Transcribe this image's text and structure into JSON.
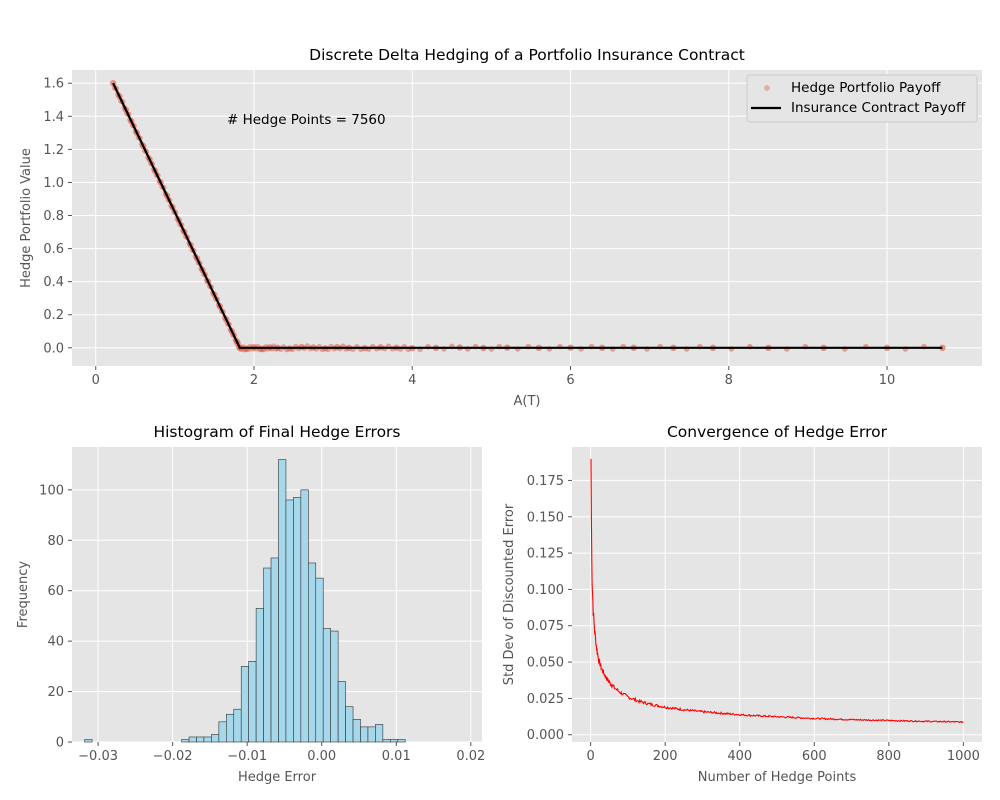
{
  "chart_data": [
    {
      "type": "scatter",
      "title": "Discrete Delta Hedging of a Portfolio Insurance Contract",
      "xlabel": "A(T)",
      "ylabel": "Hedge Portfolio Value",
      "xlim": [
        -0.3,
        11.2
      ],
      "ylim": [
        -0.11,
        1.68
      ],
      "xticks": [
        0,
        2,
        4,
        6,
        8,
        10
      ],
      "yticks": [
        0.0,
        0.2,
        0.4,
        0.6,
        0.8,
        1.0,
        1.2,
        1.4,
        1.6
      ],
      "grid": true,
      "legend_position": "top-right",
      "annotation": "# Hedge Points = 7560",
      "series": [
        {
          "name": "Hedge Portfolio Payoff",
          "kind": "scatter",
          "color": "#E24A33",
          "x": [
            0.22,
            0.3,
            0.38,
            0.45,
            0.52,
            0.6,
            0.68,
            0.75,
            0.82,
            0.9,
            0.97,
            1.05,
            1.12,
            1.2,
            1.28,
            1.35,
            1.42,
            1.5,
            1.57,
            1.65,
            1.72,
            1.78,
            1.82,
            1.9,
            2.0,
            2.1,
            2.2,
            2.3,
            2.45,
            2.6,
            2.75,
            2.9,
            3.05,
            3.2,
            3.4,
            3.6,
            3.8,
            4.0,
            4.3,
            4.6,
            4.9,
            5.2,
            5.6,
            6.0,
            6.4,
            6.8,
            7.3,
            7.8,
            8.5,
            9.2,
            10.0,
            10.7
          ],
          "y": [
            1.6,
            1.52,
            1.44,
            1.37,
            1.3,
            1.22,
            1.14,
            1.07,
            1.0,
            0.92,
            0.85,
            0.77,
            0.7,
            0.62,
            0.54,
            0.47,
            0.4,
            0.32,
            0.25,
            0.17,
            0.1,
            0.04,
            0.0,
            -0.005,
            0.004,
            -0.006,
            0.003,
            0.0,
            -0.004,
            0.005,
            0.002,
            -0.003,
            0.004,
            0.0,
            -0.002,
            0.003,
            0.001,
            -0.002,
            0.0,
            0.002,
            -0.001,
            0.001,
            0.0,
            0.001,
            0.0,
            0.0,
            0.0,
            0.0,
            0.0,
            0.0,
            0.0,
            0.0
          ]
        },
        {
          "name": "Insurance Contract Payoff",
          "kind": "line",
          "color": "#000000",
          "x": [
            0.22,
            1.82,
            10.7
          ],
          "y": [
            1.6,
            0.0,
            0.0
          ]
        }
      ]
    },
    {
      "type": "bar",
      "title": "Histogram of Final Hedge Errors",
      "xlabel": "Hedge Error",
      "ylabel": "Frequency",
      "xlim": [
        -0.0335,
        0.0215
      ],
      "ylim": [
        0,
        117
      ],
      "xticks": [
        -0.03,
        -0.02,
        -0.01,
        0.0,
        0.01,
        0.02
      ],
      "xtick_labels": [
        "−0.03",
        "−0.02",
        "−0.01",
        "0.00",
        "0.01",
        "0.02"
      ],
      "yticks": [
        0,
        20,
        40,
        60,
        80,
        100
      ],
      "grid": true,
      "bar_color": "#A6D8EC",
      "bin_start": -0.0318,
      "bin_width": 0.001,
      "values": [
        1,
        0,
        0,
        0,
        0,
        0,
        0,
        0,
        0,
        0,
        0,
        0,
        0,
        1,
        2,
        2,
        2,
        3,
        8,
        11,
        13,
        30,
        32,
        53,
        69,
        73,
        112,
        96,
        97,
        100,
        71,
        65,
        45,
        44,
        24,
        14,
        9,
        6,
        6,
        7,
        1,
        1,
        1
      ]
    },
    {
      "type": "line",
      "title": "Convergence of Hedge Error",
      "xlabel": "Number of Hedge Points",
      "ylabel": "Std Dev of Discounted Error",
      "xlim": [
        -50,
        1050
      ],
      "ylim": [
        -0.005,
        0.198
      ],
      "xticks": [
        0,
        200,
        400,
        600,
        800,
        1000
      ],
      "yticks": [
        0.0,
        0.025,
        0.05,
        0.075,
        0.1,
        0.125,
        0.15,
        0.175
      ],
      "ytick_labels": [
        "0.000",
        "0.025",
        "0.050",
        "0.075",
        "0.100",
        "0.125",
        "0.150",
        "0.175"
      ],
      "grid": true,
      "series": [
        {
          "name": "",
          "color": "#FF0000",
          "x": [
            1,
            2,
            3,
            4,
            5,
            7,
            10,
            13,
            17,
            22,
            30,
            40,
            50,
            65,
            80,
            100,
            130,
            160,
            200,
            250,
            300,
            350,
            400,
            450,
            500,
            550,
            600,
            650,
            700,
            750,
            800,
            850,
            900,
            950,
            1000
          ],
          "y": [
            0.19,
            0.148,
            0.124,
            0.106,
            0.098,
            0.085,
            0.074,
            0.066,
            0.058,
            0.051,
            0.045,
            0.04,
            0.036,
            0.032,
            0.029,
            0.026,
            0.023,
            0.021,
            0.019,
            0.0172,
            0.0158,
            0.0148,
            0.0138,
            0.013,
            0.0124,
            0.0118,
            0.0112,
            0.0108,
            0.0104,
            0.0101,
            0.0098,
            0.0095,
            0.0092,
            0.009,
            0.0087
          ]
        }
      ]
    }
  ]
}
